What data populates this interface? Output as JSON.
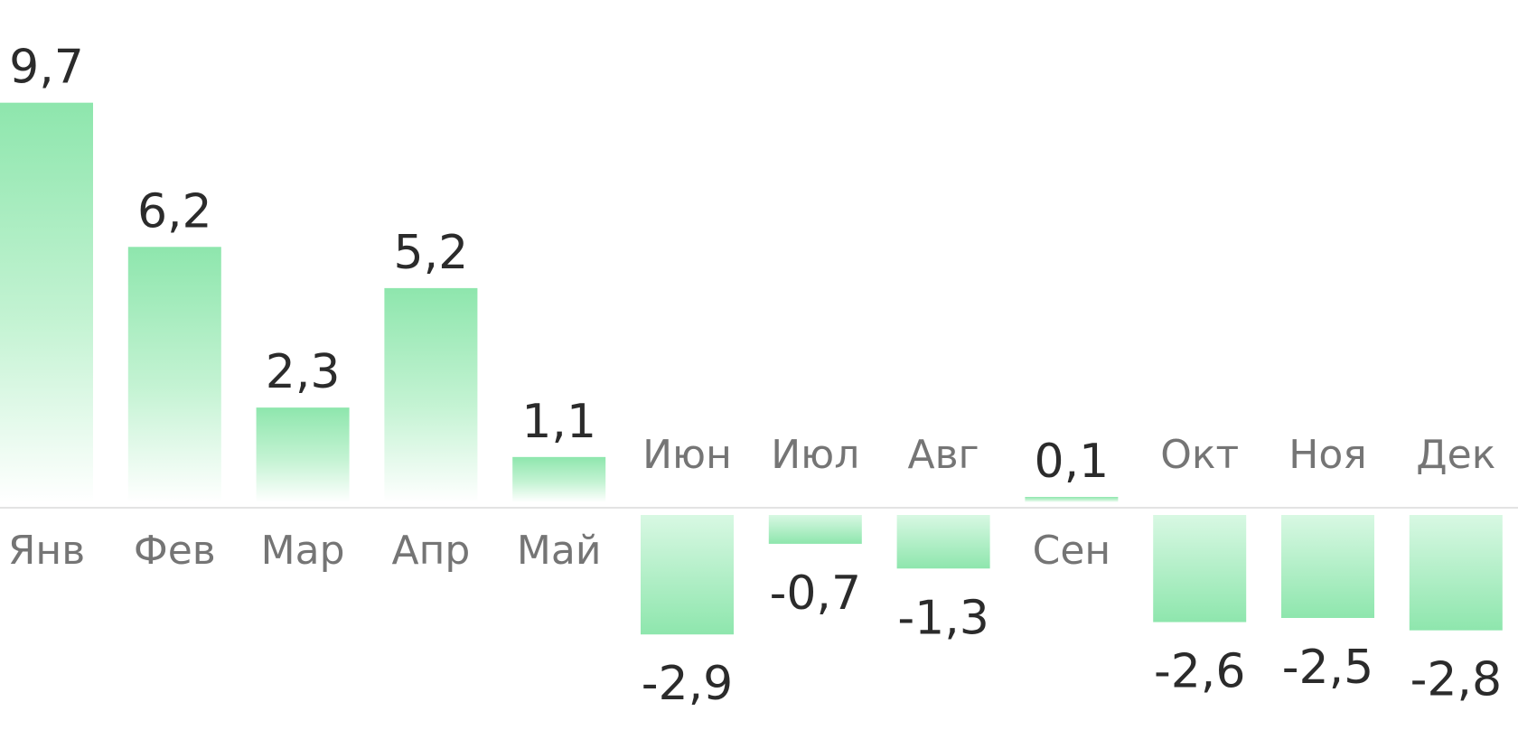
{
  "chart_data": {
    "type": "bar",
    "title": "",
    "xlabel": "",
    "ylabel": "",
    "categories": [
      "Янв",
      "Фев",
      "Мар",
      "Апр",
      "Май",
      "Июн",
      "Июл",
      "Авг",
      "Сен",
      "Окт",
      "Ноя",
      "Дек"
    ],
    "values": [
      9.7,
      6.2,
      2.3,
      5.2,
      1.1,
      -2.9,
      -0.7,
      -1.3,
      0.1,
      -2.6,
      -2.5,
      -2.8
    ],
    "value_labels": [
      "9,7",
      "6,2",
      "2,3",
      "5,2",
      "1,1",
      "-2,9",
      "-0,7",
      "-1,3",
      "0,1",
      "-2,6",
      "-2,5",
      "-2,8"
    ],
    "ylim": [
      -3,
      10
    ],
    "grid": false,
    "legend": "none",
    "colors": {
      "bar_top": "#8ee6ad",
      "bar_fade": "#ffffff",
      "zero_line": "#e3e3e3",
      "value_text": "#2b2b2b",
      "category_text": "#757575"
    }
  }
}
